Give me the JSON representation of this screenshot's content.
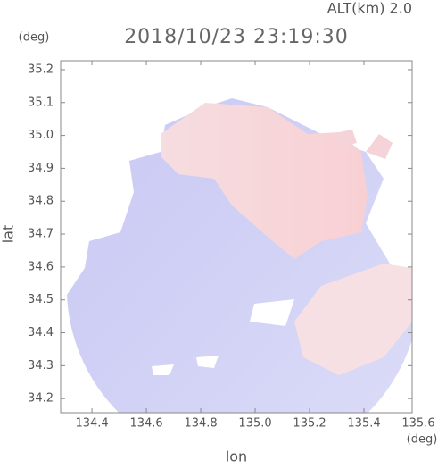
{
  "chart_data": {
    "type": "radar-field",
    "altitude_label": "ALT(km) 2.0",
    "title": "2018/10/23 23:19:30",
    "y_unit": "(deg)",
    "x_unit": "(deg)",
    "ylabel": "lat",
    "xlabel": "lon",
    "xlim": [
      134.285,
      135.577
    ],
    "ylim": [
      34.157,
      35.227
    ],
    "xticks": [
      {
        "value": 134.4,
        "label": "134.4"
      },
      {
        "value": 134.6,
        "label": "134.6"
      },
      {
        "value": 134.8,
        "label": "134.8"
      },
      {
        "value": 135.0,
        "label": "135.0"
      },
      {
        "value": 135.2,
        "label": "135.2"
      },
      {
        "value": 135.4,
        "label": "135.4"
      },
      {
        "value": 135.6,
        "label": "135.6"
      }
    ],
    "yticks": [
      {
        "value": 34.2,
        "label": "34.2"
      },
      {
        "value": 34.3,
        "label": "34.3"
      },
      {
        "value": 34.4,
        "label": "34.4"
      },
      {
        "value": 34.5,
        "label": "34.5"
      },
      {
        "value": 34.6,
        "label": "34.6"
      },
      {
        "value": 34.7,
        "label": "34.7"
      },
      {
        "value": 34.8,
        "label": "34.8"
      },
      {
        "value": 34.9,
        "label": "34.9"
      },
      {
        "value": 35.0,
        "label": "35.0"
      },
      {
        "value": 35.1,
        "label": "35.1"
      },
      {
        "value": 35.2,
        "label": "35.2"
      }
    ]
  }
}
